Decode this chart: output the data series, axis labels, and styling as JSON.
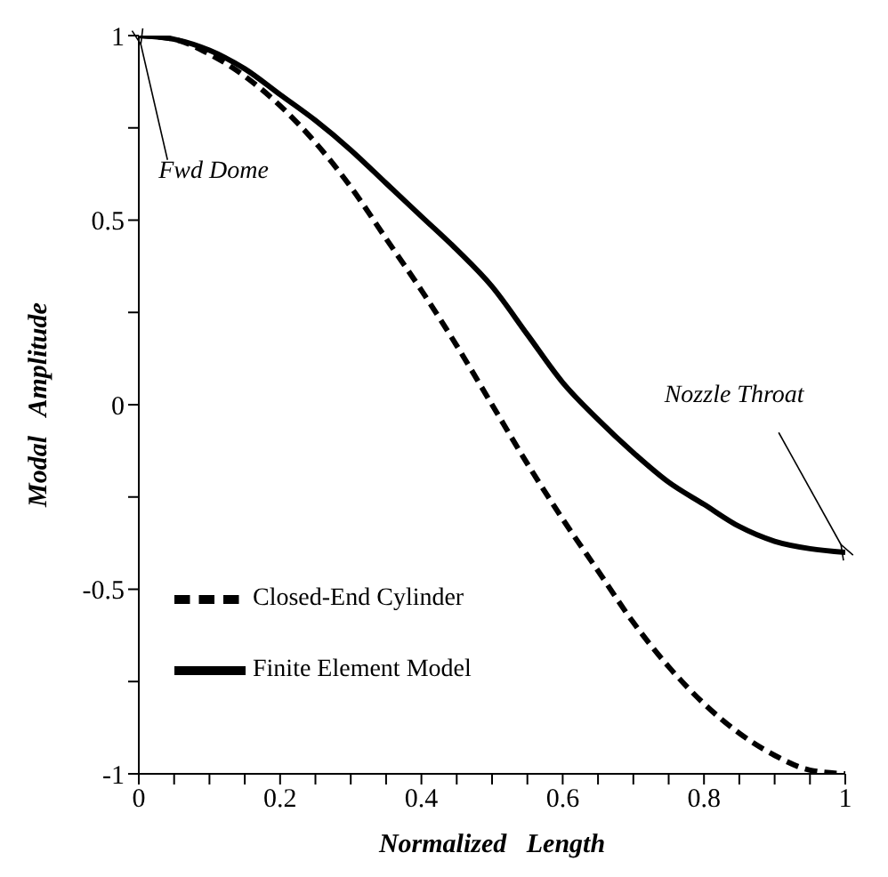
{
  "chart_data": {
    "type": "line",
    "xlabel": "Normalized   Length",
    "ylabel": "Modal   Amplitude",
    "x": [
      0,
      0.05,
      0.1,
      0.15,
      0.2,
      0.25,
      0.3,
      0.35,
      0.4,
      0.45,
      0.5,
      0.55,
      0.6,
      0.65,
      0.7,
      0.75,
      0.8,
      0.85,
      0.9,
      0.95,
      1
    ],
    "series": [
      {
        "name": "Closed-End Cylinder",
        "color": "#000000",
        "line_style": "dashed",
        "values": [
          1,
          0.99,
          0.95,
          0.89,
          0.81,
          0.71,
          0.59,
          0.45,
          0.31,
          0.16,
          0,
          -0.16,
          -0.31,
          -0.45,
          -0.59,
          -0.71,
          -0.81,
          -0.89,
          -0.95,
          -0.99,
          -1
        ]
      },
      {
        "name": "Finite Element Model",
        "color": "#000000",
        "line_style": "solid",
        "values": [
          1,
          0.99,
          0.96,
          0.91,
          0.84,
          0.77,
          0.69,
          0.6,
          0.51,
          0.42,
          0.32,
          0.19,
          0.06,
          -0.04,
          -0.13,
          -0.21,
          -0.27,
          -0.33,
          -0.37,
          -0.39,
          -0.4
        ]
      }
    ],
    "xlim": [
      0,
      1
    ],
    "ylim": [
      -1,
      1
    ],
    "xticks": [
      0,
      {
        "value": 0.05,
        "label": null
      },
      {
        "value": 0.1,
        "label": null
      },
      {
        "value": 0.15,
        "label": null
      },
      0.2,
      {
        "value": 0.25,
        "label": null
      },
      {
        "value": 0.3,
        "label": null
      },
      {
        "value": 0.35,
        "label": null
      },
      0.4,
      {
        "value": 0.45,
        "label": null
      },
      {
        "value": 0.5,
        "label": null
      },
      {
        "value": 0.55,
        "label": null
      },
      0.6,
      {
        "value": 0.65,
        "label": null
      },
      {
        "value": 0.7,
        "label": null
      },
      {
        "value": 0.75,
        "label": null
      },
      0.8,
      {
        "value": 0.85,
        "label": null
      },
      {
        "value": 0.9,
        "label": null
      },
      {
        "value": 0.95,
        "label": null
      },
      1
    ],
    "yticks": [
      -1,
      {
        "value": -0.75,
        "label": null
      },
      -0.5,
      {
        "value": -0.25,
        "label": null
      },
      0,
      {
        "value": 0.25,
        "label": null
      },
      0.5,
      {
        "value": 0.75,
        "label": null
      },
      1
    ],
    "grid": false,
    "legend": "bottom left",
    "marker": "none",
    "annotations": [
      {
        "text": "Fwd Dome",
        "x": 0,
        "y": 1
      },
      {
        "text": "Nozzle Throat",
        "x": 1,
        "y": -0.4
      }
    ]
  }
}
